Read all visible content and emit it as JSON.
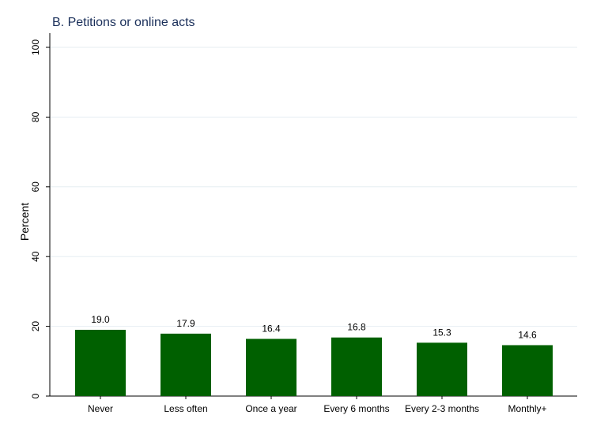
{
  "chart_data": {
    "type": "bar",
    "title": "B. Petitions or online acts",
    "xlabel": "",
    "ylabel": "Percent",
    "categories": [
      "Never",
      "Less often",
      "Once a year",
      "Every 6 months",
      "Every 2-3 months",
      "Monthly+"
    ],
    "values": [
      19.0,
      17.9,
      16.4,
      16.8,
      15.3,
      14.6
    ],
    "value_labels": [
      "19.0",
      "17.9",
      "16.4",
      "16.8",
      "15.3",
      "14.6"
    ],
    "ylim": [
      0,
      100
    ],
    "yticks": [
      0,
      20,
      40,
      60,
      80,
      100
    ],
    "grid": true,
    "bar_color": "#006000",
    "title_color": "#1a2f5a"
  }
}
